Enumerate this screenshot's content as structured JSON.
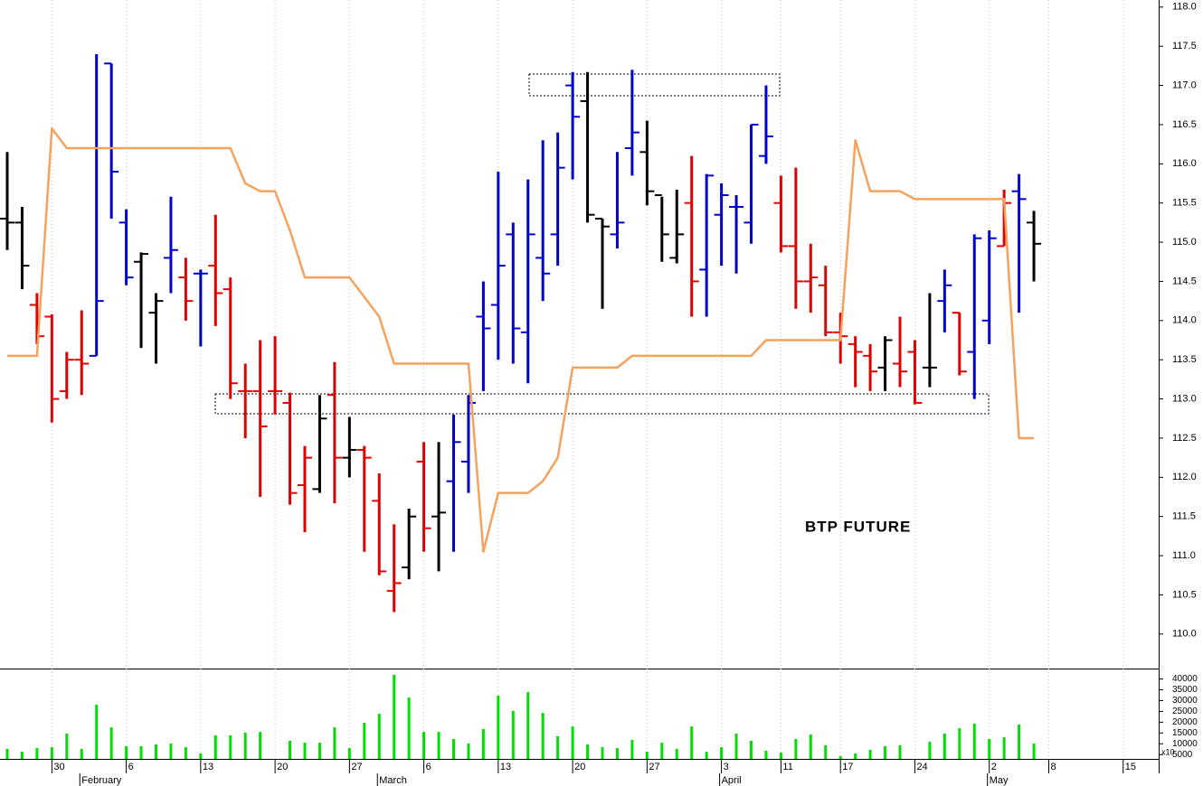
{
  "chart_data": {
    "type": "ohlc",
    "title": "BTP FUTURE",
    "categories": [
      null,
      null,
      null,
      "30",
      null,
      null,
      null,
      null,
      "6",
      null,
      null,
      null,
      null,
      "13",
      null,
      null,
      null,
      null,
      "20",
      null,
      null,
      null,
      null,
      "27",
      null,
      null,
      null,
      null,
      "6",
      null,
      null,
      null,
      null,
      "13",
      null,
      null,
      null,
      null,
      "20",
      null,
      null,
      null,
      null,
      "27",
      null,
      null,
      null,
      null,
      "3",
      null,
      null,
      null,
      "11",
      null,
      null,
      null,
      "17",
      null,
      null,
      null,
      null,
      "24",
      null,
      null,
      null,
      null,
      "2",
      null,
      null,
      null,
      "8",
      null,
      null,
      null,
      null,
      "15"
    ],
    "month_labels": [
      null,
      null,
      null,
      null,
      null,
      "February",
      null,
      null,
      null,
      null,
      null,
      null,
      null,
      null,
      null,
      null,
      null,
      null,
      null,
      null,
      null,
      null,
      null,
      null,
      null,
      "March",
      null,
      null,
      null,
      null,
      null,
      null,
      null,
      null,
      null,
      null,
      null,
      null,
      null,
      null,
      null,
      null,
      null,
      null,
      null,
      null,
      null,
      null,
      "April",
      null,
      null,
      null,
      null,
      null,
      null,
      null,
      null,
      null,
      null,
      null,
      null,
      null,
      null,
      null,
      null,
      null,
      "May",
      null,
      null,
      null,
      null,
      null,
      null,
      null,
      null,
      null
    ],
    "open": [
      115.3,
      115.25,
      114.2,
      114.05,
      113.1,
      113.5,
      113.55,
      117.28,
      115.25,
      114.75,
      114.1,
      114.8,
      114.55,
      114.6,
      114.7,
      114.4,
      113.1,
      113.1,
      113.1,
      112.95,
      111.9,
      111.85,
      113.05,
      112.25,
      112.35,
      111.7,
      110.55,
      110.85,
      112.2,
      111.5,
      111.95,
      112.2,
      114.05,
      114.2,
      115.1,
      113.85,
      114.8,
      115.1,
      117.0,
      116.8,
      115.3,
      115.1,
      116.2,
      116.15,
      115.6,
      114.8,
      115.5,
      114.65,
      115.35,
      115.45,
      115.25,
      116.1,
      115.5,
      114.95,
      114.5,
      114.45,
      113.85,
      113.7,
      113.55,
      113.4,
      113.45,
      113.6,
      113.4,
      114.25,
      114.1,
      113.6,
      114.0,
      114.95,
      115.65,
      115.25,
      null,
      null,
      null,
      null,
      null,
      null
    ],
    "high": [
      116.15,
      115.45,
      114.35,
      114.08,
      113.6,
      114.13,
      117.4,
      117.28,
      115.42,
      114.87,
      114.35,
      115.58,
      114.8,
      114.65,
      115.35,
      114.55,
      113.45,
      113.75,
      113.8,
      113.08,
      112.4,
      113.05,
      113.47,
      112.77,
      112.4,
      112.05,
      111.4,
      111.6,
      112.45,
      112.45,
      112.8,
      113.05,
      114.5,
      115.9,
      115.25,
      115.8,
      116.3,
      116.4,
      117.17,
      117.17,
      115.3,
      116.15,
      117.2,
      116.55,
      115.58,
      115.67,
      116.1,
      115.87,
      115.75,
      115.6,
      116.5,
      117.0,
      115.85,
      115.95,
      114.98,
      114.7,
      114.1,
      113.8,
      113.7,
      113.8,
      114.05,
      113.75,
      114.35,
      114.65,
      114.1,
      115.1,
      115.15,
      115.67,
      115.87,
      115.4,
      null,
      null,
      null,
      null,
      null,
      null
    ],
    "low": [
      114.9,
      114.4,
      113.7,
      112.7,
      113.0,
      113.05,
      113.55,
      115.3,
      114.45,
      113.65,
      113.45,
      114.35,
      114.0,
      113.67,
      113.93,
      113.0,
      112.5,
      111.75,
      112.8,
      111.65,
      111.3,
      111.8,
      111.67,
      112.0,
      111.05,
      110.75,
      110.28,
      110.7,
      111.05,
      110.8,
      111.05,
      111.8,
      113.1,
      113.5,
      113.45,
      113.2,
      114.25,
      114.7,
      115.8,
      115.25,
      114.15,
      114.92,
      115.85,
      115.47,
      114.75,
      114.73,
      114.05,
      114.05,
      114.7,
      114.6,
      114.98,
      116.0,
      114.87,
      114.15,
      114.1,
      113.8,
      113.45,
      113.15,
      113.1,
      113.1,
      113.15,
      112.93,
      113.15,
      113.85,
      113.3,
      113.0,
      113.7,
      114.95,
      114.1,
      114.5,
      null,
      null,
      null,
      null,
      null,
      null
    ],
    "close": [
      115.25,
      114.7,
      113.8,
      113.0,
      113.5,
      113.45,
      114.25,
      115.9,
      114.55,
      114.85,
      114.25,
      114.9,
      114.25,
      114.6,
      114.35,
      113.2,
      113.1,
      112.65,
      113.1,
      111.8,
      112.25,
      112.75,
      112.25,
      112.35,
      112.25,
      110.8,
      110.65,
      111.5,
      111.35,
      111.55,
      112.45,
      112.95,
      113.9,
      114.7,
      113.9,
      115.1,
      114.6,
      115.95,
      116.6,
      115.35,
      115.2,
      115.25,
      116.4,
      115.65,
      115.1,
      115.1,
      114.5,
      115.85,
      115.6,
      115.45,
      116.5,
      116.35,
      114.95,
      114.5,
      114.55,
      113.85,
      113.8,
      113.6,
      113.35,
      113.75,
      113.35,
      112.95,
      113.4,
      114.45,
      113.35,
      115.05,
      115.05,
      115.5,
      115.55,
      114.98,
      null,
      null,
      null,
      null,
      null,
      null
    ],
    "bar_colors": [
      "#000000",
      "#000000",
      "#e00000",
      "#e00000",
      "#e00000",
      "#e00000",
      "#0000cc",
      "#0000cc",
      "#0000cc",
      "#000000",
      "#000000",
      "#0000cc",
      "#e00000",
      "#0000cc",
      "#e00000",
      "#e00000",
      "#e00000",
      "#e00000",
      "#e00000",
      "#e00000",
      "#e00000",
      "#000000",
      "#e00000",
      "#000000",
      "#e00000",
      "#e00000",
      "#e00000",
      "#000000",
      "#e00000",
      "#000000",
      "#0000cc",
      "#0000cc",
      "#0000cc",
      "#0000cc",
      "#0000cc",
      "#0000cc",
      "#0000cc",
      "#0000cc",
      "#0000cc",
      "#000000",
      "#000000",
      "#0000cc",
      "#0000cc",
      "#000000",
      "#000000",
      "#000000",
      "#e00000",
      "#0000cc",
      "#0000cc",
      "#0000cc",
      "#0000cc",
      "#0000cc",
      "#e00000",
      "#e00000",
      "#e00000",
      "#e00000",
      "#e00000",
      "#e00000",
      "#e00000",
      "#000000",
      "#e00000",
      "#e00000",
      "#000000",
      "#0000cc",
      "#e00000",
      "#0000cc",
      "#0000cc",
      "#e00000",
      "#0000cc",
      "#000000",
      null,
      null,
      null,
      null,
      null,
      null
    ],
    "line": {
      "color": "#f5a25d",
      "values": [
        113.55,
        113.55,
        113.55,
        116.45,
        116.2,
        116.2,
        116.2,
        116.2,
        116.2,
        116.2,
        116.2,
        116.2,
        116.2,
        116.2,
        116.2,
        116.2,
        115.75,
        115.65,
        115.65,
        115.15,
        114.55,
        114.55,
        114.55,
        114.55,
        114.3,
        114.05,
        113.45,
        113.45,
        113.45,
        113.45,
        113.45,
        113.45,
        111.05,
        111.8,
        111.8,
        111.8,
        111.95,
        112.25,
        113.4,
        113.4,
        113.4,
        113.4,
        113.55,
        113.55,
        113.55,
        113.55,
        113.55,
        113.55,
        113.55,
        113.55,
        113.55,
        113.75,
        113.75,
        113.75,
        113.75,
        113.75,
        113.75,
        116.3,
        115.65,
        115.65,
        115.65,
        115.55,
        115.55,
        115.55,
        115.55,
        115.55,
        115.55,
        115.55,
        112.5,
        112.5,
        null,
        null,
        null,
        null,
        null,
        null
      ]
    },
    "ylim": [
      109.56,
      118.09
    ],
    "yticks": [
      {
        "value": 110,
        "label": "110.0"
      },
      110.5,
      {
        "value": 111,
        "label": "111.0"
      },
      111.5,
      {
        "value": 112,
        "label": "112.0"
      },
      112.5,
      {
        "value": 113,
        "label": "113.0"
      },
      113.5,
      {
        "value": 114,
        "label": "114.0"
      },
      114.5,
      {
        "value": 115,
        "label": "115.0"
      },
      115.5,
      {
        "value": 116,
        "label": "116.0"
      },
      116.5,
      {
        "value": 117,
        "label": "117.0"
      },
      117.5,
      {
        "value": 118,
        "label": "118.0"
      }
    ],
    "grid": "x",
    "volume": {
      "type": "bar",
      "color": "#00e000",
      "values": [
        7600,
        6300,
        8000,
        8400,
        14700,
        7600,
        28100,
        17600,
        8900,
        8900,
        9700,
        10100,
        8400,
        5500,
        13900,
        13900,
        15100,
        15500,
        3000,
        11400,
        10500,
        10500,
        17600,
        8000,
        19700,
        23900,
        41900,
        31400,
        15500,
        15500,
        12200,
        10100,
        16800,
        32300,
        25200,
        33900,
        24300,
        13500,
        18000,
        9700,
        8400,
        8000,
        11800,
        6300,
        10500,
        7600,
        18000,
        6300,
        8400,
        14700,
        11400,
        6800,
        5900,
        12200,
        14300,
        9300,
        4300,
        5500,
        7200,
        8900,
        9300,
        3000,
        10900,
        14700,
        17200,
        19300,
        12200,
        13000,
        18900,
        10100,
        null,
        null,
        null,
        null,
        null,
        null
      ],
      "ylim": [
        3000,
        44000
      ],
      "yticks": [
        5000,
        10000,
        15000,
        20000,
        25000,
        30000,
        35000,
        40000
      ],
      "axis_note": "x10"
    }
  }
}
